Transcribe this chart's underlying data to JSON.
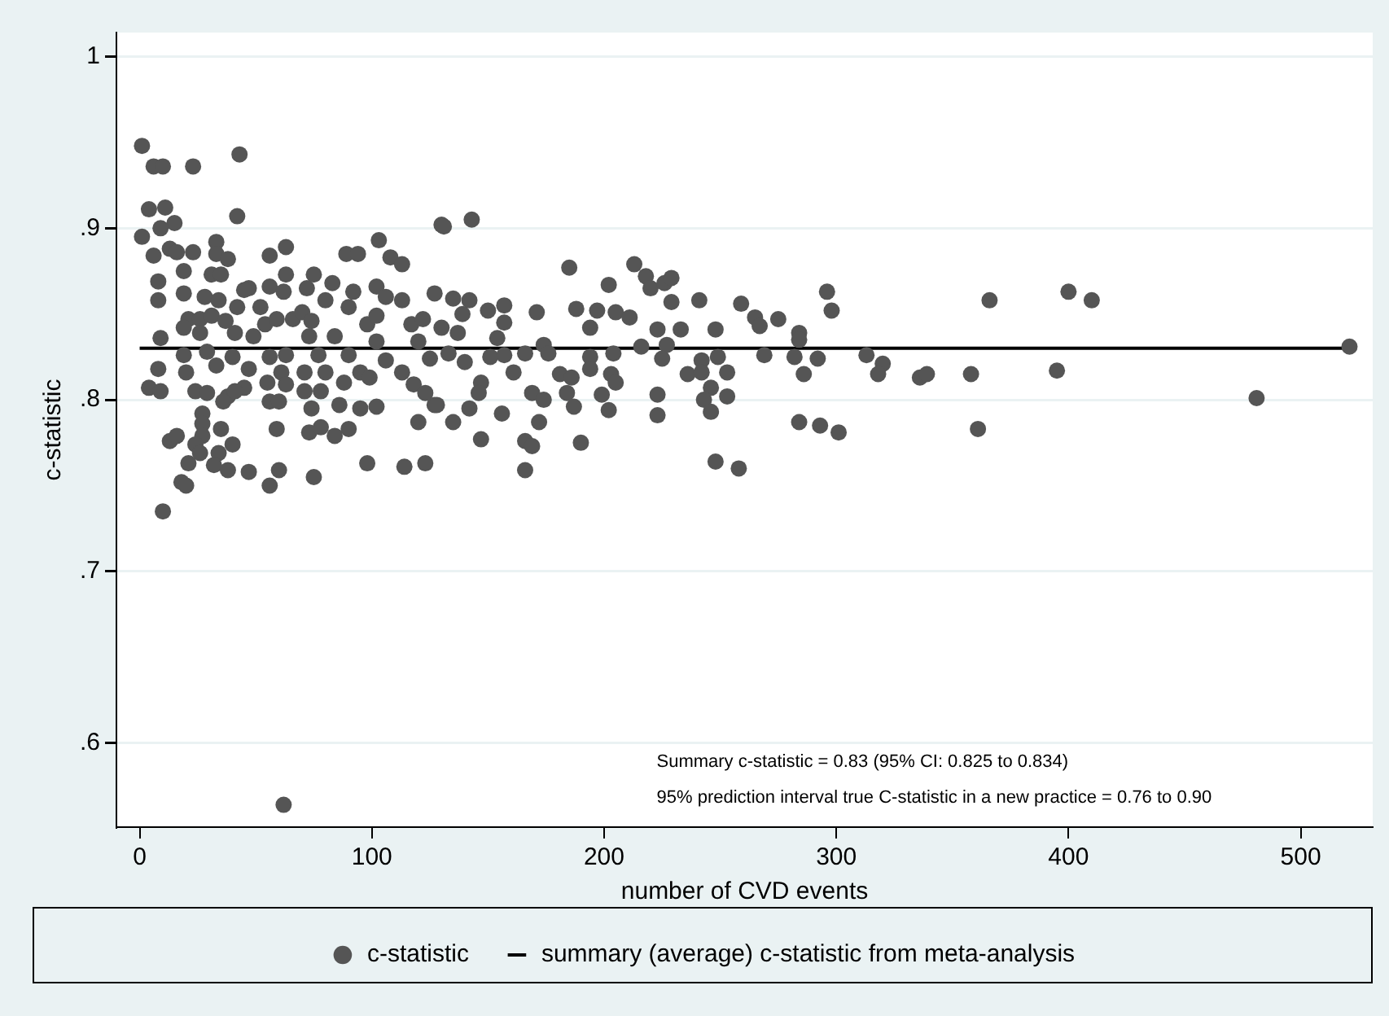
{
  "chart_data": {
    "type": "scatter",
    "xlabel": "number of CVD events",
    "ylabel": "c-statistic",
    "xlim": [
      -10,
      531
    ],
    "xticks": [
      0,
      100,
      200,
      300,
      400,
      500
    ],
    "ylim": [
      0.551,
      1.014
    ],
    "yticks": [
      {
        "value": 0.6,
        "label": ".6"
      },
      {
        "value": 0.7,
        "label": ".7"
      },
      {
        "value": 0.8,
        "label": ".8"
      },
      {
        "value": 0.9,
        "label": ".9"
      },
      {
        "value": 1,
        "label": "1"
      }
    ],
    "grid": "y",
    "legend": "bottom",
    "annotations": [
      "Summary c-statistic = 0.83 (95% CI: 0.825 to 0.834)",
      "95% prediction interval true C-statistic in a new practice = 0.76 to 0.90"
    ],
    "series": [
      {
        "name": "c-statistic",
        "type": "scatter",
        "marker": "circle",
        "color": "#555555",
        "x": [
          1,
          6,
          10,
          23,
          43,
          4,
          11,
          15,
          42,
          1,
          9,
          6,
          13,
          16,
          23,
          33,
          33,
          38,
          56,
          63,
          103,
          89,
          94,
          108,
          113,
          130,
          8,
          19,
          31,
          35,
          63,
          75,
          83,
          47,
          56,
          72,
          92,
          102,
          8,
          19,
          28,
          34,
          45,
          52,
          62,
          80,
          90,
          106,
          113,
          127,
          42,
          21,
          26,
          31,
          37,
          54,
          59,
          66,
          70,
          74,
          98,
          102,
          117,
          122,
          130,
          19,
          9,
          26,
          41,
          49,
          73,
          84,
          102,
          120,
          19,
          29,
          40,
          56,
          63,
          77,
          90,
          106,
          8,
          33,
          47,
          61,
          71,
          80,
          95,
          113,
          4,
          9,
          20,
          24,
          29,
          38,
          45,
          55,
          63,
          71,
          78,
          88,
          99,
          118,
          123,
          36,
          56,
          60,
          41,
          74,
          86,
          95,
          102,
          127,
          27,
          27,
          35,
          59,
          73,
          78,
          84,
          90,
          120,
          13,
          16,
          27,
          24,
          40,
          26,
          34,
          21,
          32,
          38,
          47,
          60,
          98,
          114,
          123,
          18,
          20,
          56,
          75,
          10,
          62,
          131,
          143,
          185,
          213,
          218,
          220,
          226,
          229,
          202,
          296,
          298,
          135,
          142,
          139,
          150,
          157,
          157,
          171,
          188,
          197,
          205,
          211,
          229,
          241,
          259,
          265,
          267,
          275,
          137,
          154,
          194,
          223,
          233,
          248,
          284,
          284,
          174,
          216,
          227,
          125,
          133,
          140,
          151,
          157,
          166,
          176,
          194,
          204,
          225,
          242,
          249,
          269,
          282,
          292,
          313,
          320,
          318,
          161,
          181,
          186,
          194,
          203,
          205,
          236,
          242,
          253,
          286,
          147,
          146,
          169,
          184,
          199,
          223,
          246,
          253,
          128,
          142,
          156,
          174,
          187,
          202,
          223,
          243,
          246,
          172,
          135,
          284,
          293,
          301,
          147,
          166,
          169,
          190,
          166,
          248,
          258,
          336,
          339,
          358,
          366,
          395,
          400,
          410,
          481,
          521,
          361
        ],
        "values": [
          0.948,
          0.936,
          0.936,
          0.936,
          0.943,
          0.911,
          0.912,
          0.903,
          0.907,
          0.895,
          0.9,
          0.884,
          0.888,
          0.886,
          0.886,
          0.892,
          0.885,
          0.882,
          0.884,
          0.889,
          0.893,
          0.885,
          0.885,
          0.883,
          0.879,
          0.902,
          0.869,
          0.875,
          0.873,
          0.873,
          0.873,
          0.873,
          0.868,
          0.865,
          0.866,
          0.865,
          0.863,
          0.866,
          0.858,
          0.862,
          0.86,
          0.858,
          0.864,
          0.854,
          0.863,
          0.858,
          0.854,
          0.86,
          0.858,
          0.862,
          0.854,
          0.847,
          0.847,
          0.849,
          0.846,
          0.844,
          0.847,
          0.847,
          0.851,
          0.846,
          0.844,
          0.849,
          0.844,
          0.847,
          0.842,
          0.842,
          0.836,
          0.839,
          0.839,
          0.837,
          0.837,
          0.837,
          0.834,
          0.834,
          0.826,
          0.828,
          0.825,
          0.825,
          0.826,
          0.826,
          0.826,
          0.823,
          0.818,
          0.82,
          0.818,
          0.816,
          0.816,
          0.816,
          0.816,
          0.816,
          0.807,
          0.805,
          0.816,
          0.805,
          0.804,
          0.802,
          0.807,
          0.81,
          0.809,
          0.805,
          0.805,
          0.81,
          0.813,
          0.809,
          0.804,
          0.799,
          0.799,
          0.799,
          0.805,
          0.795,
          0.797,
          0.795,
          0.796,
          0.797,
          0.792,
          0.786,
          0.783,
          0.783,
          0.781,
          0.784,
          0.779,
          0.783,
          0.787,
          0.776,
          0.779,
          0.779,
          0.774,
          0.774,
          0.769,
          0.769,
          0.763,
          0.762,
          0.759,
          0.758,
          0.759,
          0.763,
          0.761,
          0.763,
          0.752,
          0.75,
          0.75,
          0.755,
          0.735,
          0.564,
          0.901,
          0.905,
          0.877,
          0.879,
          0.872,
          0.865,
          0.868,
          0.871,
          0.867,
          0.863,
          0.852,
          0.859,
          0.858,
          0.85,
          0.852,
          0.855,
          0.845,
          0.851,
          0.853,
          0.852,
          0.851,
          0.848,
          0.857,
          0.858,
          0.856,
          0.848,
          0.843,
          0.847,
          0.839,
          0.836,
          0.842,
          0.841,
          0.841,
          0.841,
          0.839,
          0.835,
          0.832,
          0.831,
          0.832,
          0.824,
          0.827,
          0.822,
          0.825,
          0.826,
          0.827,
          0.827,
          0.825,
          0.827,
          0.824,
          0.823,
          0.825,
          0.826,
          0.825,
          0.824,
          0.826,
          0.821,
          0.815,
          0.816,
          0.815,
          0.813,
          0.818,
          0.815,
          0.81,
          0.815,
          0.816,
          0.816,
          0.815,
          0.81,
          0.804,
          0.804,
          0.804,
          0.803,
          0.803,
          0.807,
          0.802,
          0.797,
          0.795,
          0.792,
          0.8,
          0.796,
          0.794,
          0.791,
          0.8,
          0.793,
          0.787,
          0.787,
          0.787,
          0.785,
          0.781,
          0.777,
          0.776,
          0.773,
          0.775,
          0.759,
          0.764,
          0.76,
          0.813,
          0.815,
          0.815,
          0.858,
          0.817,
          0.863,
          0.858,
          0.801,
          0.831,
          0.783
        ]
      },
      {
        "name": "summary (average) c-statistic from meta-analysis",
        "type": "line",
        "color": "#000000",
        "x": [
          0,
          520
        ],
        "values": [
          0.83,
          0.83
        ]
      }
    ]
  }
}
